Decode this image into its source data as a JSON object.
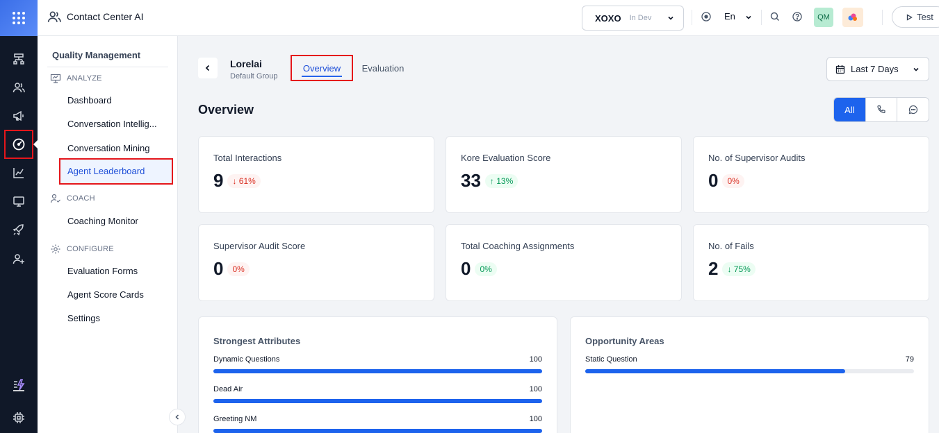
{
  "header": {
    "app_title": "Contact Center AI",
    "workspace": {
      "name": "XOXO",
      "env": "In Dev"
    },
    "language": "En",
    "user_initials": "QM",
    "test_label": "Test"
  },
  "rail": {
    "icons": [
      "apps-grid-icon",
      "flow-icon",
      "users-icon",
      "megaphone-icon",
      "speedometer-icon",
      "chart-icon",
      "monitor-icon",
      "rocket-icon",
      "add-user-icon",
      "bolt-icon",
      "chip-icon"
    ],
    "active": "speedometer-icon"
  },
  "sidenav": {
    "title": "Quality Management",
    "sections": {
      "analyze": "ANALYZE",
      "coach": "COACH",
      "configure": "CONFIGURE"
    },
    "items": {
      "dashboard": "Dashboard",
      "conv_intel": "Conversation Intellig...",
      "conv_mining": "Conversation Mining",
      "agent_leaderboard": "Agent Leaderboard",
      "coaching_monitor": "Coaching Monitor",
      "eval_forms": "Evaluation Forms",
      "score_cards": "Agent Score Cards",
      "settings": "Settings"
    },
    "active_item": "agent_leaderboard"
  },
  "main": {
    "agent": {
      "name": "Lorelai",
      "group": "Default Group"
    },
    "tabs": {
      "overview": "Overview",
      "evaluation": "Evaluation"
    },
    "active_tab": "overview",
    "date_range": "Last 7 Days",
    "heading": "Overview",
    "channel_filter": {
      "all": "All",
      "selected": "All",
      "other_icons": [
        "phone-icon",
        "chat-icon"
      ]
    },
    "cards": [
      {
        "label": "Total Interactions",
        "value": "9",
        "change": "↓ 61%",
        "tone": "red"
      },
      {
        "label": "Kore Evaluation Score",
        "value": "33",
        "change": "↑ 13%",
        "tone": "green"
      },
      {
        "label": "No. of Supervisor Audits",
        "value": "0",
        "change": "0%",
        "tone": "red"
      },
      {
        "label": "Supervisor Audit Score",
        "value": "0",
        "change": "0%",
        "tone": "red"
      },
      {
        "label": "Total Coaching Assignments",
        "value": "0",
        "change": "0%",
        "tone": "green"
      },
      {
        "label": "No. of Fails",
        "value": "2",
        "change": "↓ 75%",
        "tone": "green"
      }
    ],
    "strongest": {
      "title": "Strongest Attributes",
      "items": [
        {
          "name": "Dynamic Questions",
          "score": 100
        },
        {
          "name": "Dead Air",
          "score": 100
        },
        {
          "name": "Greeting NM",
          "score": 100
        }
      ]
    },
    "opportunity": {
      "title": "Opportunity Areas",
      "items": [
        {
          "name": "Static Question",
          "score": 79
        }
      ]
    }
  },
  "colors": {
    "accent": "#1d63ed",
    "highlight_border": "#e5161b",
    "rail_bg": "#101828"
  }
}
